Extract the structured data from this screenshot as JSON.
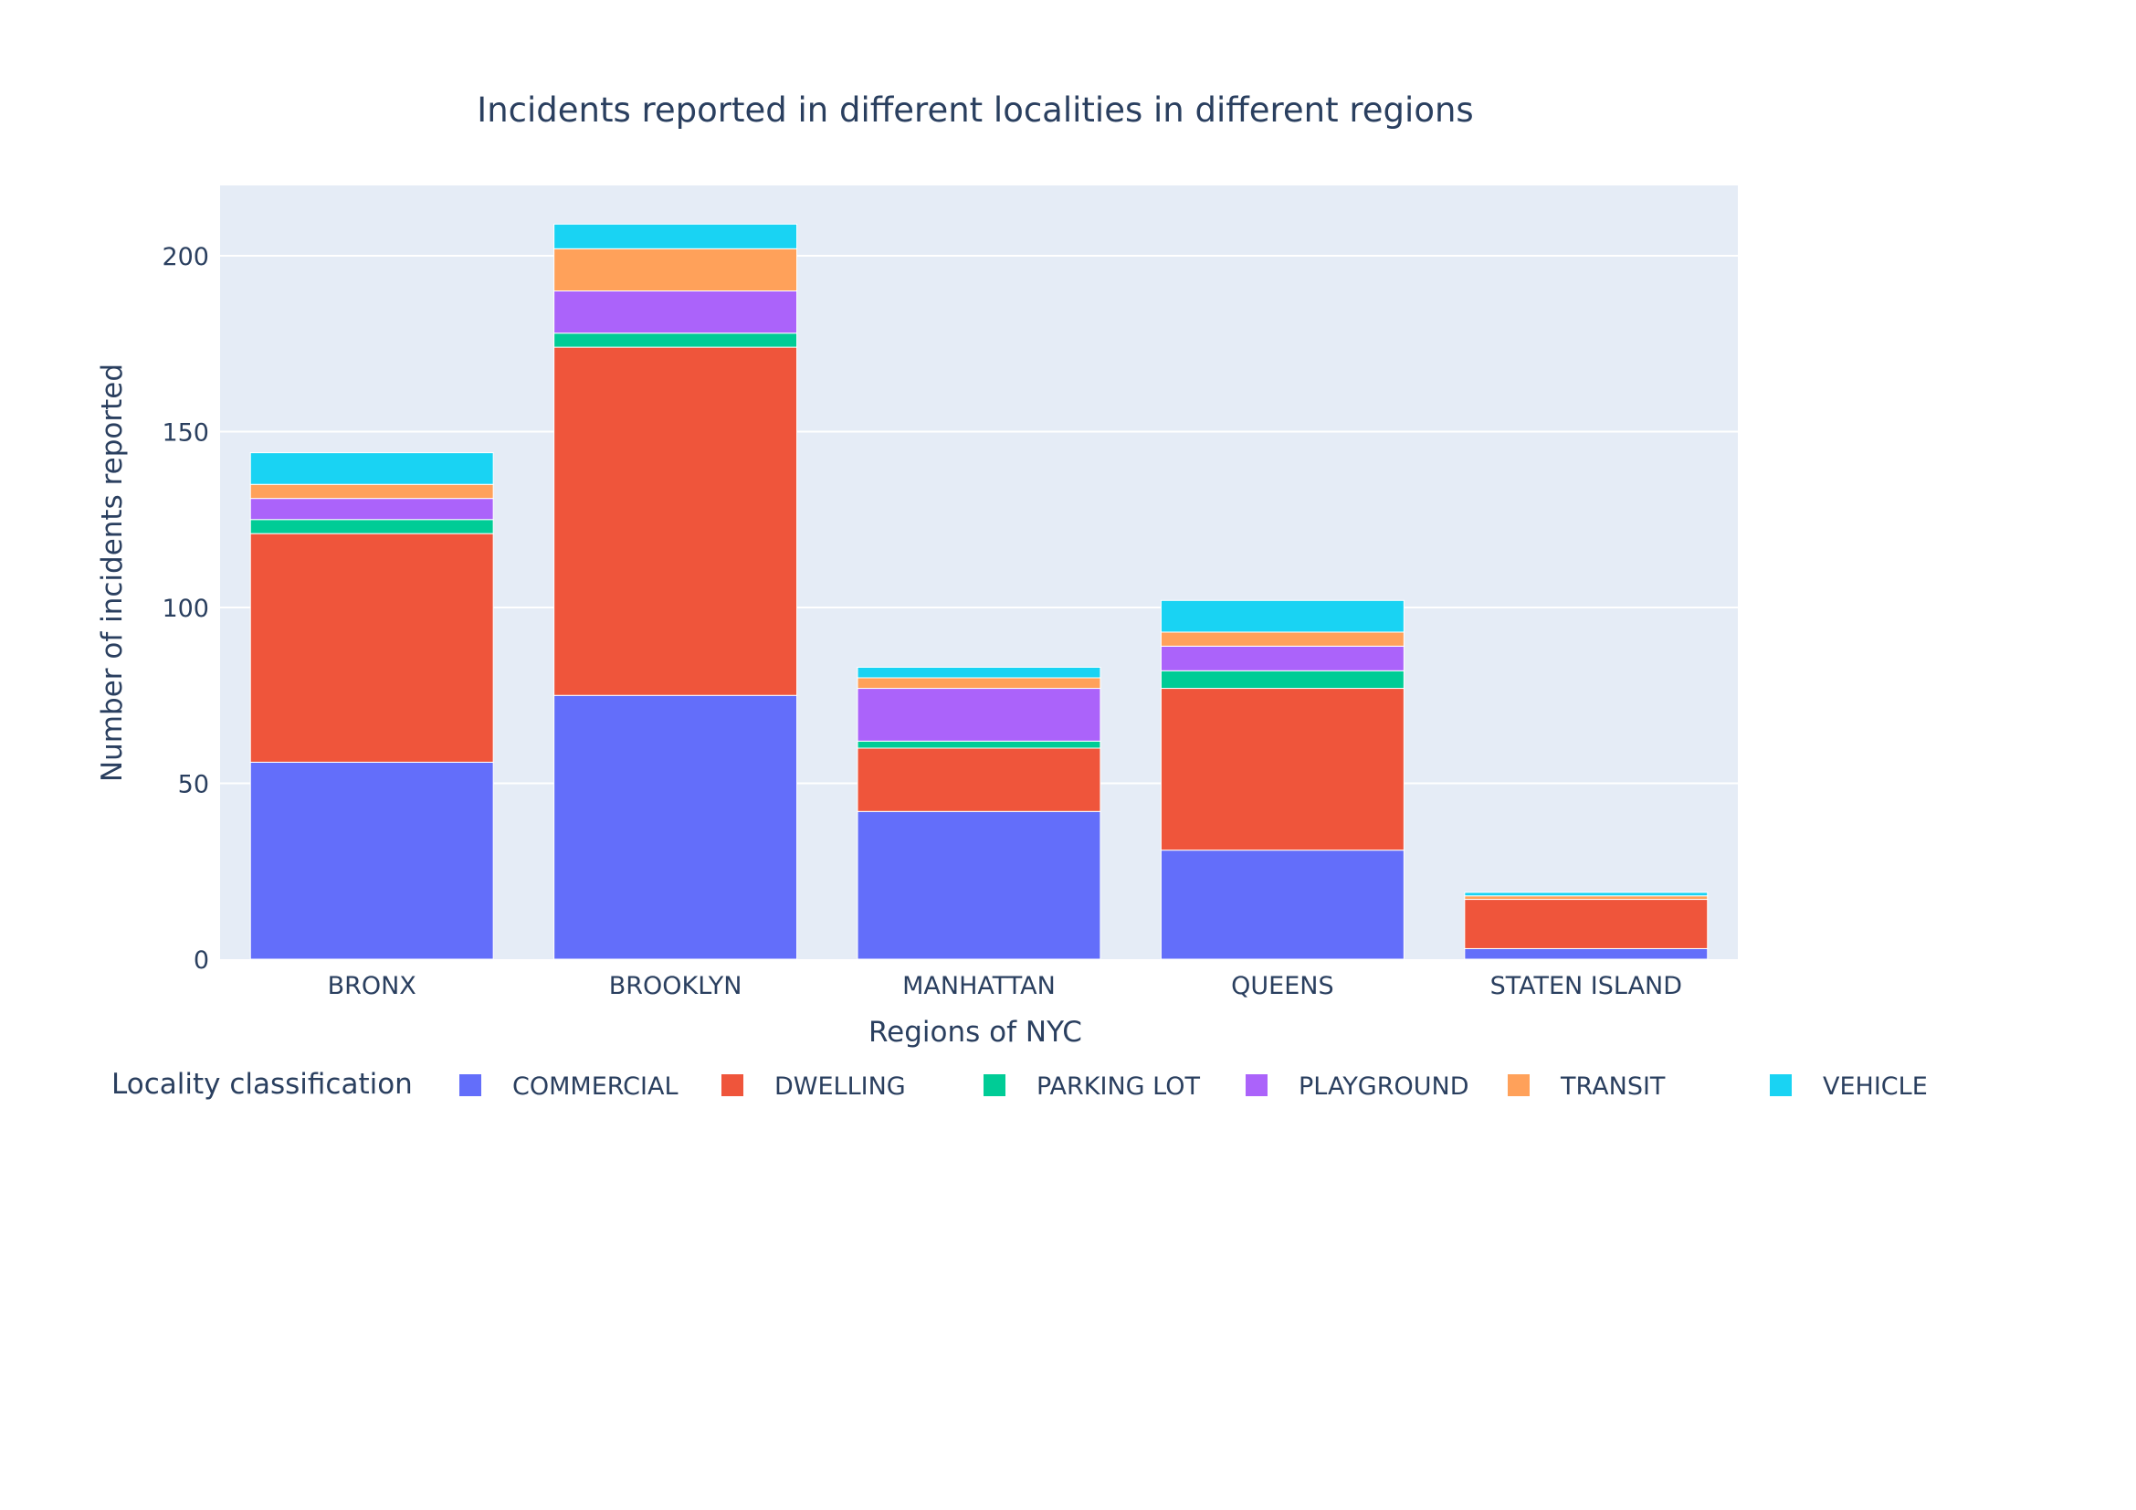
{
  "chart_data": {
    "type": "bar",
    "barmode": "stack",
    "title": "Incidents reported in different localities in different regions",
    "xlabel": "Regions of NYC",
    "ylabel": "Number of incidents reported",
    "ylim": [
      0,
      220
    ],
    "yticks": [
      0,
      50,
      100,
      150,
      200
    ],
    "grid": true,
    "background_color": "#e5ecf6",
    "legend": {
      "title": "Locality classification",
      "placement": "bottom",
      "orientation": "horizontal"
    },
    "categories": [
      "BRONX",
      "BROOKLYN",
      "MANHATTAN",
      "QUEENS",
      "STATEN ISLAND"
    ],
    "series": [
      {
        "name": "COMMERCIAL",
        "color": "#636efa",
        "values": [
          56,
          75,
          42,
          31,
          3
        ]
      },
      {
        "name": "DWELLING",
        "color": "#ef553b",
        "values": [
          65,
          99,
          18,
          46,
          14
        ]
      },
      {
        "name": "PARKING LOT",
        "color": "#00cc96",
        "values": [
          4,
          4,
          2,
          5,
          0
        ]
      },
      {
        "name": "PLAYGROUND",
        "color": "#ab63fa",
        "values": [
          6,
          12,
          15,
          7,
          0
        ]
      },
      {
        "name": "TRANSIT",
        "color": "#ffa15a",
        "values": [
          4,
          12,
          3,
          4,
          1
        ]
      },
      {
        "name": "VEHICLE",
        "color": "#19d3f3",
        "values": [
          9,
          7,
          3,
          9,
          1
        ]
      }
    ]
  }
}
